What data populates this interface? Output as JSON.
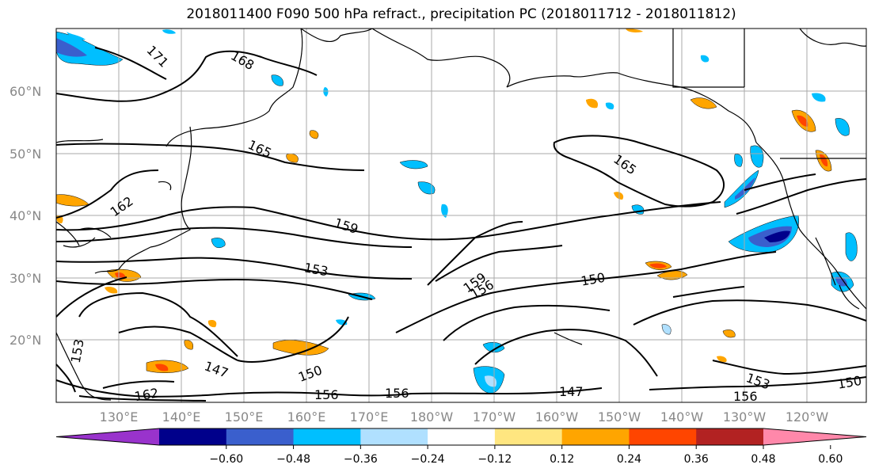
{
  "title": "2018011400 F090 500 hPa refract., precipitation PC (2018011712 - 2018011812)",
  "lat_labels": [
    "60°N",
    "50°N",
    "40°N",
    "30°N",
    "20°N"
  ],
  "lon_labels": [
    "130°E",
    "140°E",
    "150°E",
    "160°E",
    "170°E",
    "180°W",
    "170°W",
    "160°W",
    "150°W",
    "140°W",
    "130°W",
    "120°W"
  ],
  "colorbar": {
    "tick_labels": [
      "−0.60",
      "−0.48",
      "−0.36",
      "−0.24",
      "−0.12",
      "0.12",
      "0.24",
      "0.36",
      "0.48",
      "0.60"
    ],
    "colors": [
      "#9933cc",
      "#00008b",
      "#3a5fcd",
      "#00bfff",
      "#b0e0ff",
      "#ffffff",
      "#ffe680",
      "#ffa500",
      "#ff4500",
      "#b22222",
      "#ff88aa"
    ]
  },
  "contour_labels": [
    {
      "text": "171"
    },
    {
      "text": "168"
    },
    {
      "text": "165"
    },
    {
      "text": "162"
    },
    {
      "text": "165"
    },
    {
      "text": "159"
    },
    {
      "text": "153"
    },
    {
      "text": "159"
    },
    {
      "text": "156"
    },
    {
      "text": "150"
    },
    {
      "text": "153"
    },
    {
      "text": "147"
    },
    {
      "text": "150"
    },
    {
      "text": "156"
    },
    {
      "text": "156"
    },
    {
      "text": "162"
    },
    {
      "text": "147"
    },
    {
      "text": "153"
    },
    {
      "text": "156"
    },
    {
      "text": "150"
    }
  ]
}
